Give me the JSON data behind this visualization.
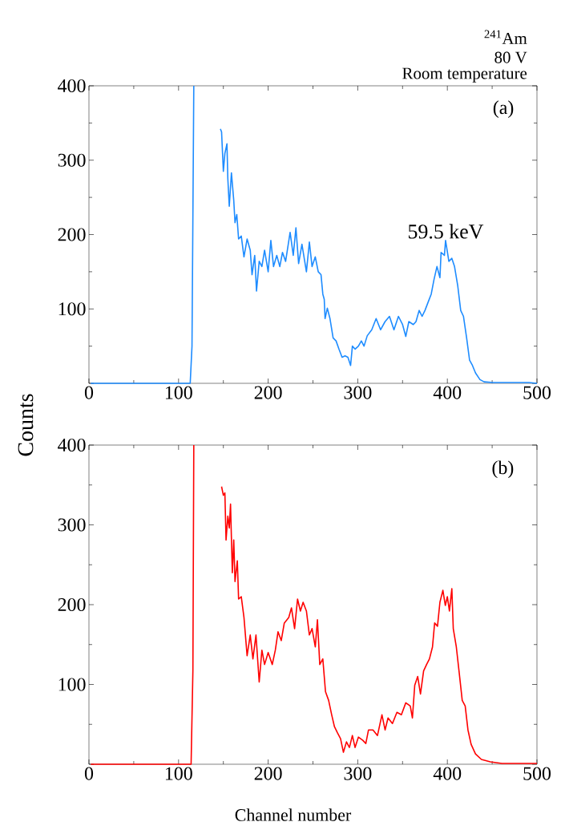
{
  "chart_data": [
    {
      "type": "line",
      "color": "#1e8cff",
      "ylabel": "Counts",
      "xlim": [
        0,
        500
      ],
      "ylim": [
        0,
        400
      ],
      "xticks": [
        0,
        100,
        200,
        300,
        400,
        500
      ],
      "yticks": [
        {
          "value": 0,
          "label": null
        },
        100,
        200,
        300,
        400
      ],
      "annotations": [
        "$^{241}$Am",
        "80 V",
        "Room temperature",
        "(a)",
        {
          "text": "59.5 keV",
          "x": 398,
          "y": 192
        }
      ],
      "x": [
        2,
        113,
        115,
        117,
        145,
        146.7,
        148,
        150,
        151.7,
        154,
        155,
        156.6,
        159,
        161.6,
        163,
        165,
        167,
        170,
        173,
        176.5,
        180,
        182,
        185,
        187,
        190,
        193,
        196,
        200,
        203,
        206,
        209.6,
        213,
        216,
        219.5,
        224.5,
        228,
        231,
        234,
        237.7,
        242.7,
        246,
        249,
        252.6,
        255.9,
        259,
        261,
        262.6,
        263.5,
        266,
        269,
        272.5,
        275.8,
        279,
        282.5,
        285.8,
        289,
        292,
        294,
        297,
        300.7,
        304,
        307,
        310.6,
        315.6,
        320.5,
        325.5,
        330.5,
        335.4,
        340.4,
        345.4,
        350,
        353.6,
        357,
        362,
        365,
        368.5,
        371.8,
        375,
        378.5,
        382,
        385,
        388.4,
        391.7,
        393,
        396.7,
        398,
        401.7,
        405,
        408,
        411.6,
        414.9,
        418,
        421.5,
        424.8,
        428,
        431.4,
        436.4,
        441,
        451,
        464.6,
        478,
        491,
        500
      ],
      "values": [
        0,
        0,
        50,
        400,
        null,
        342,
        338,
        285,
        309,
        322,
        275,
        238,
        283,
        246,
        216,
        227,
        194,
        198,
        170,
        194,
        179,
        146,
        172,
        124,
        164,
        157,
        179,
        150,
        192,
        157,
        172,
        157,
        176,
        164,
        203,
        172,
        209,
        161,
        187,
        150,
        190,
        157,
        170,
        150,
        146,
        120,
        113,
        87,
        101,
        87,
        61,
        57,
        46,
        35,
        37,
        35,
        24,
        50,
        46,
        50,
        57,
        50,
        64,
        72,
        87,
        72,
        83,
        90,
        72,
        90,
        79,
        63,
        83,
        79,
        83,
        98,
        90,
        98,
        109,
        120,
        139,
        157,
        142,
        176,
        172,
        192,
        164,
        168,
        157,
        131,
        98,
        90,
        61,
        31,
        24,
        14,
        5,
        2,
        1,
        1,
        1,
        1,
        0
      ]
    },
    {
      "type": "line",
      "color": "#ff0000",
      "xlabel": "Channel number",
      "xlim": [
        0,
        500
      ],
      "ylim": [
        0,
        400
      ],
      "xticks": [
        0,
        100,
        200,
        300,
        400,
        500
      ],
      "yticks": [
        {
          "value": 0,
          "label": null
        },
        100,
        200,
        300,
        400
      ],
      "annotations": [
        "(b)"
      ],
      "x": [
        2,
        114,
        116,
        117,
        146.7,
        148,
        150,
        151.7,
        153,
        155,
        156.6,
        158,
        160,
        161.6,
        163,
        165.6,
        167,
        170,
        173,
        176.5,
        180,
        183,
        186.4,
        190,
        193,
        196,
        200,
        204.6,
        208,
        211,
        214.6,
        218,
        223,
        226,
        229.5,
        232.8,
        236,
        239,
        242.7,
        246,
        249,
        252.6,
        255,
        257.6,
        261,
        264,
        267.5,
        270.9,
        274,
        277.5,
        280.8,
        284,
        287.4,
        290.7,
        294,
        297,
        300.7,
        305.6,
        309,
        312,
        317,
        322,
        327,
        330.5,
        333.8,
        338.7,
        343.7,
        348.7,
        353.6,
        358.6,
        361,
        363.6,
        366.9,
        370,
        373.5,
        376.8,
        380,
        383.4,
        385.8,
        389,
        391.7,
        395,
        397.7,
        400,
        402.3,
        405,
        406.6,
        410,
        413,
        416.6,
        419.9,
        423,
        426.5,
        431.4,
        438,
        448,
        461,
        478,
        500
      ],
      "values": [
        0,
        0,
        117,
        400,
        null,
        348,
        337,
        340,
        281,
        311,
        296,
        326,
        240,
        281,
        229,
        255,
        207,
        210,
        184,
        136,
        162,
        132,
        162,
        103,
        143,
        125,
        140,
        125,
        143,
        166,
        155,
        177,
        184,
        196,
        170,
        207,
        192,
        203,
        192,
        162,
        170,
        147,
        181,
        125,
        132,
        91,
        80,
        62,
        47,
        39,
        32,
        15,
        28,
        21,
        36,
        21,
        34,
        30,
        26,
        43,
        43,
        36,
        62,
        43,
        58,
        51,
        65,
        62,
        77,
        73,
        58,
        99,
        110,
        88,
        117,
        125,
        132,
        147,
        177,
        173,
        203,
        218,
        199,
        210,
        192,
        220,
        170,
        147,
        117,
        80,
        73,
        43,
        25,
        13,
        6,
        3,
        1,
        1,
        1
      ]
    }
  ]
}
